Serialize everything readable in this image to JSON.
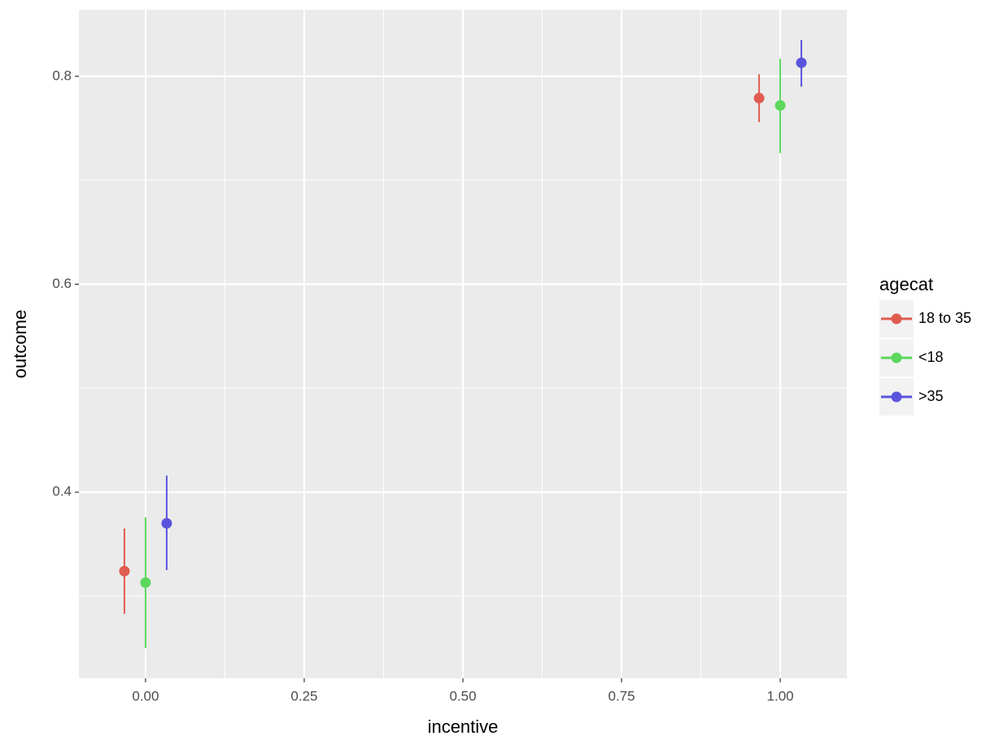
{
  "chart_data": {
    "type": "pointrange",
    "xlabel": "incentive",
    "ylabel": "outcome",
    "x": [
      0,
      1
    ],
    "series": [
      {
        "name": "18 to 35",
        "color": "#e05c50",
        "values": [
          0.324,
          0.779
        ],
        "ymin": [
          0.283,
          0.756
        ],
        "ymax": [
          0.365,
          0.802
        ]
      },
      {
        "name": "<18",
        "color": "#5bd85d",
        "values": [
          0.313,
          0.772
        ],
        "ymin": [
          0.25,
          0.726
        ],
        "ymax": [
          0.376,
          0.817
        ]
      },
      {
        "name": ">35",
        "color": "#5b55dd",
        "values": [
          0.37,
          0.813
        ],
        "ymin": [
          0.325,
          0.79
        ],
        "ymax": [
          0.416,
          0.835
        ]
      }
    ],
    "legend_title": "agecat",
    "legend": "right",
    "xlim": [
      -0.105,
      1.105
    ],
    "xticks": [
      {
        "value": 0,
        "label": "0.00"
      },
      0.25,
      {
        "value": 0.5,
        "label": "0.50"
      },
      0.75,
      {
        "value": 1,
        "label": "1.00"
      }
    ],
    "xminor": [
      0.125,
      0.375,
      0.625,
      0.875
    ],
    "ylim": [
      0.221,
      0.864
    ],
    "yticks": [
      0.4,
      0.6,
      0.8
    ],
    "yminor": [
      0.3,
      0.5,
      0.7
    ],
    "grid": true
  }
}
